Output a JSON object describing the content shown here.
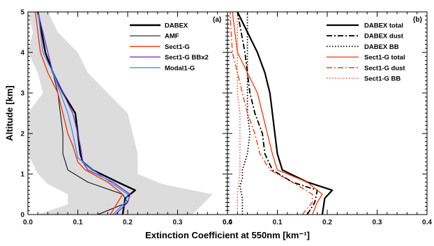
{
  "chart_data": [
    {
      "panel": "(a)",
      "type": "line",
      "xlabel": "Extinction Coefficient at 550nm [km⁻¹]",
      "ylabel": "Altitude [km]",
      "xlim": [
        0,
        0.4
      ],
      "ylim": [
        0,
        5
      ],
      "xticks": [
        "0.0",
        "0.1",
        "0.2",
        "0.3",
        "0.4"
      ],
      "yticks": [
        "0",
        "1",
        "2",
        "3",
        "4",
        "5"
      ],
      "legend_position": "top-right",
      "shaded_range": {
        "y": [
          0.0,
          0.25,
          0.5,
          0.75,
          1.0,
          1.5,
          2.0,
          2.5,
          3.0,
          3.5,
          4.0,
          4.5,
          5.0
        ],
        "lower": [
          0.02,
          0.08,
          0.08,
          0.04,
          0.02,
          0.0,
          0.0,
          0.0,
          0.03,
          0.02,
          0.0,
          0.01,
          0.0
        ],
        "upper": [
          0.33,
          0.35,
          0.37,
          0.27,
          0.22,
          0.22,
          0.21,
          0.2,
          0.16,
          0.12,
          0.1,
          0.06,
          0.04
        ]
      },
      "series": [
        {
          "name": "DABEX",
          "color": "#000000",
          "width": 2.4,
          "dash": "",
          "x": [
            0.19,
            0.195,
            0.215,
            0.18,
            0.13,
            0.11,
            0.105,
            0.1,
            0.095,
            0.07,
            0.05,
            0.035,
            0.02
          ],
          "y": [
            0.0,
            0.4,
            0.6,
            0.8,
            1.1,
            1.3,
            1.5,
            2.0,
            2.5,
            3.0,
            3.5,
            4.0,
            5.0
          ]
        },
        {
          "name": "AMF",
          "color": "#000000",
          "width": 1.0,
          "dash": "",
          "x": [
            0.14,
            0.2,
            0.19,
            0.12,
            0.08,
            0.07,
            0.07,
            0.065,
            0.06,
            0.05,
            0.03,
            0.02
          ],
          "y": [
            0.0,
            0.3,
            0.5,
            0.8,
            1.1,
            1.5,
            2.0,
            2.5,
            3.0,
            3.5,
            4.0,
            5.0
          ]
        },
        {
          "name": "Sect1-G",
          "color": "#ff3300",
          "width": 1.4,
          "dash": "",
          "x": [
            0.165,
            0.18,
            0.19,
            0.16,
            0.115,
            0.1,
            0.09,
            0.08,
            0.06,
            0.04,
            0.025,
            0.015
          ],
          "y": [
            0.0,
            0.3,
            0.5,
            0.8,
            1.1,
            1.3,
            1.7,
            2.0,
            3.0,
            3.5,
            4.0,
            5.0
          ]
        },
        {
          "name": "Sect1-G BBx2",
          "color": "#7733cc",
          "width": 1.4,
          "dash": "",
          "x": [
            0.175,
            0.2,
            0.205,
            0.17,
            0.12,
            0.11,
            0.105,
            0.1,
            0.09,
            0.07,
            0.05,
            0.02
          ],
          "y": [
            0.0,
            0.3,
            0.5,
            0.8,
            1.1,
            1.3,
            1.7,
            2.0,
            2.5,
            3.0,
            3.5,
            5.0
          ]
        },
        {
          "name": "Modal1-G",
          "color": "#3399ff",
          "width": 1.4,
          "dash": "",
          "x": [
            0.17,
            0.195,
            0.2,
            0.165,
            0.13,
            0.1,
            0.09,
            0.08,
            0.065,
            0.05,
            0.03,
            0.02
          ],
          "y": [
            0.0,
            0.3,
            0.5,
            0.8,
            1.1,
            1.4,
            2.0,
            2.5,
            3.0,
            3.5,
            4.0,
            5.0
          ]
        }
      ]
    },
    {
      "panel": "(b)",
      "type": "line",
      "xlabel": "",
      "ylabel": "",
      "xlim": [
        0,
        0.4
      ],
      "ylim": [
        0,
        5
      ],
      "xticks": [
        "0.0",
        "0.1",
        "0.2",
        "0.3",
        "0.4"
      ],
      "legend_position": "top-right",
      "series": [
        {
          "name": "DABEX total",
          "color": "#000000",
          "width": 2.2,
          "dash": "",
          "x": [
            0.19,
            0.195,
            0.21,
            0.16,
            0.11,
            0.1,
            0.095,
            0.09,
            0.085,
            0.075,
            0.06,
            0.04,
            0.02
          ],
          "y": [
            0.0,
            0.4,
            0.6,
            0.8,
            1.1,
            1.5,
            2.0,
            2.5,
            3.0,
            3.5,
            4.0,
            4.5,
            5.0
          ]
        },
        {
          "name": "DABEX dust",
          "color": "#000000",
          "width": 1.8,
          "dash": "8,3,2,3",
          "x": [
            0.16,
            0.175,
            0.18,
            0.13,
            0.09,
            0.075,
            0.07,
            0.055,
            0.045,
            0.035,
            0.02
          ],
          "y": [
            0.0,
            0.3,
            0.6,
            0.8,
            1.1,
            1.5,
            2.0,
            2.5,
            3.0,
            4.0,
            5.0
          ]
        },
        {
          "name": "DABEX BB",
          "color": "#000000",
          "width": 1.8,
          "dash": "1.5,2.5",
          "x": [
            0.03,
            0.03,
            0.025,
            0.03,
            0.03,
            0.04,
            0.045,
            0.04,
            0.04,
            0.04,
            0.04
          ],
          "y": [
            0.0,
            0.4,
            0.7,
            0.9,
            1.1,
            1.5,
            2.0,
            2.5,
            3.0,
            4.0,
            5.0
          ]
        },
        {
          "name": "Sect1-G total",
          "color": "#ff3300",
          "width": 1.3,
          "dash": "",
          "x": [
            0.17,
            0.18,
            0.19,
            0.16,
            0.1,
            0.09,
            0.08,
            0.06,
            0.04,
            0.02,
            0.01
          ],
          "y": [
            0.0,
            0.3,
            0.5,
            0.8,
            1.1,
            1.5,
            2.0,
            3.0,
            3.5,
            4.0,
            5.0
          ]
        },
        {
          "name": "Sect1-G dust",
          "color": "#ff3300",
          "width": 1.3,
          "dash": "8,3,2,3",
          "x": [
            0.15,
            0.17,
            0.17,
            0.13,
            0.085,
            0.065,
            0.055,
            0.04,
            0.03,
            0.02,
            0.01,
            0.005
          ],
          "y": [
            0.0,
            0.3,
            0.5,
            0.8,
            1.1,
            1.5,
            2.0,
            2.5,
            3.0,
            3.5,
            4.0,
            5.0
          ]
        },
        {
          "name": "Sect1-G BB",
          "color": "#ff3300",
          "width": 1.3,
          "dash": "1.5,2.5",
          "x": [
            0.02,
            0.02,
            0.025,
            0.025,
            0.025,
            0.025,
            0.02,
            0.02,
            0.02
          ],
          "y": [
            0.0,
            0.5,
            1.0,
            1.5,
            2.0,
            2.5,
            3.0,
            4.0,
            5.0
          ]
        }
      ]
    }
  ]
}
